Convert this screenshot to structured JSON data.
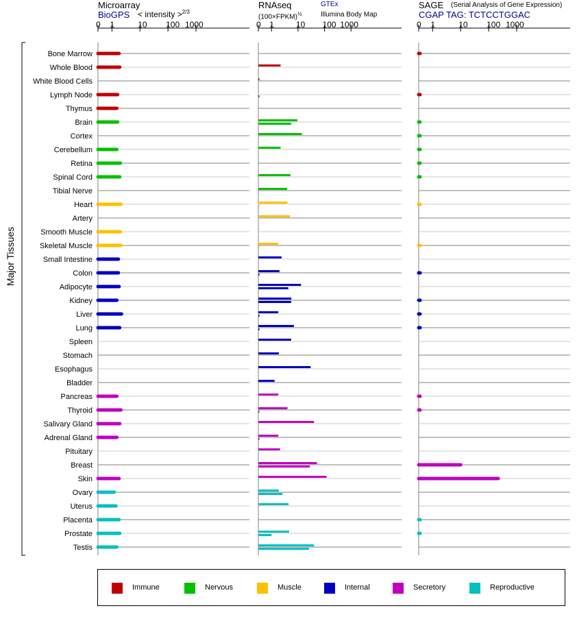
{
  "headers": {
    "microarray": {
      "title": "Microarray",
      "source": "BioGPS",
      "units": "< intensity >",
      "units_exp": "2/3"
    },
    "rnaseq": {
      "title": "RNAseq",
      "units": "(100×FPKM)",
      "units_exp": "½",
      "source1": "GTEx",
      "source2": "Illumina Body Map"
    },
    "sage": {
      "title": "SAGE",
      "subtitle": "(Serial Analysis of Gene Expression)",
      "tag": "CGAP TAG: TCTCCTGGAC"
    }
  },
  "colors": {
    "Immune": "#c00000",
    "Nervous": "#00c000",
    "Muscle": "#ffc000",
    "Internal": "#0000c0",
    "Secretory": "#c000c0",
    "Reproductive": "#00c0c0"
  },
  "legend": [
    "Immune",
    "Nervous",
    "Muscle",
    "Internal",
    "Secretory",
    "Reproductive"
  ],
  "chart_data": {
    "type": "bar",
    "ylabel": "Major Tissues",
    "xscale": "log",
    "xticks": [
      "0",
      "1",
      "10",
      "100",
      "1000"
    ],
    "categories": [
      "Bone Marrow",
      "Whole Blood",
      "White Blood Cells",
      "Lymph Node",
      "Thymus",
      "Brain",
      "Cortex",
      "Cerebellum",
      "Retina",
      "Spinal Cord",
      "Tibial Nerve",
      "Heart",
      "Artery",
      "Smooth Muscle",
      "Skeletal Muscle",
      "Small Intestine",
      "Colon",
      "Adipocyte",
      "Kidney",
      "Liver",
      "Lung",
      "Spleen",
      "Stomach",
      "Esophagus",
      "Bladder",
      "Pancreas",
      "Thyroid",
      "Salivary Gland",
      "Adrenal Gland",
      "Pituitary",
      "Breast",
      "Skin",
      "Ovary",
      "Uterus",
      "Placenta",
      "Prostate",
      "Testis"
    ],
    "systems": [
      "Immune",
      "Immune",
      "Immune",
      "Immune",
      "Immune",
      "Nervous",
      "Nervous",
      "Nervous",
      "Nervous",
      "Nervous",
      "Nervous",
      "Muscle",
      "Muscle",
      "Muscle",
      "Muscle",
      "Internal",
      "Internal",
      "Internal",
      "Internal",
      "Internal",
      "Internal",
      "Internal",
      "Internal",
      "Internal",
      "Internal",
      "Secretory",
      "Secretory",
      "Secretory",
      "Secretory",
      "Secretory",
      "Secretory",
      "Secretory",
      "Reproductive",
      "Reproductive",
      "Reproductive",
      "Reproductive",
      "Reproductive"
    ],
    "series": [
      {
        "name": "Microarray",
        "values": [
          1.8,
          1.9,
          null,
          1.6,
          1.5,
          1.6,
          null,
          1.5,
          2.0,
          1.9,
          null,
          2.1,
          null,
          2.0,
          2.1,
          1.7,
          1.7,
          1.8,
          1.5,
          2.2,
          1.9,
          null,
          null,
          null,
          null,
          1.5,
          2.1,
          1.9,
          1.5,
          null,
          null,
          1.8,
          1.2,
          1.4,
          1.8,
          1.9,
          1.5
        ]
      },
      {
        "name": "GTEx",
        "values": [
          null,
          2.2,
          0.05,
          null,
          null,
          9.5,
          14,
          2.2,
          null,
          5.2,
          3.9,
          4.0,
          5.0,
          null,
          1.8,
          2.4,
          2.0,
          13,
          5.6,
          1.8,
          7.0,
          5.5,
          1.9,
          30,
          1.3,
          1.8,
          4.0,
          40,
          1.8,
          2.1,
          52,
          120,
          1.9,
          4.4,
          null,
          4.6,
          40
        ]
      },
      {
        "name": "Illumina Body Map",
        "values": [
          null,
          null,
          null,
          0.05,
          null,
          5.5,
          null,
          null,
          null,
          null,
          null,
          0.05,
          null,
          null,
          0.05,
          null,
          0.05,
          4.3,
          5.5,
          0.05,
          0.05,
          null,
          null,
          null,
          null,
          null,
          0.05,
          null,
          0.05,
          null,
          28,
          null,
          2.6,
          null,
          null,
          1.0,
          26
        ]
      },
      {
        "name": "SAGE",
        "values": [
          0.1,
          null,
          null,
          0.1,
          null,
          0.05,
          0.05,
          0.05,
          0.05,
          0.05,
          null,
          0.03,
          null,
          null,
          0.03,
          null,
          0.1,
          null,
          0.1,
          0.1,
          0.1,
          null,
          null,
          null,
          null,
          0.1,
          0.1,
          null,
          null,
          null,
          10,
          220,
          null,
          null,
          0.05,
          0.05,
          null
        ]
      }
    ]
  }
}
